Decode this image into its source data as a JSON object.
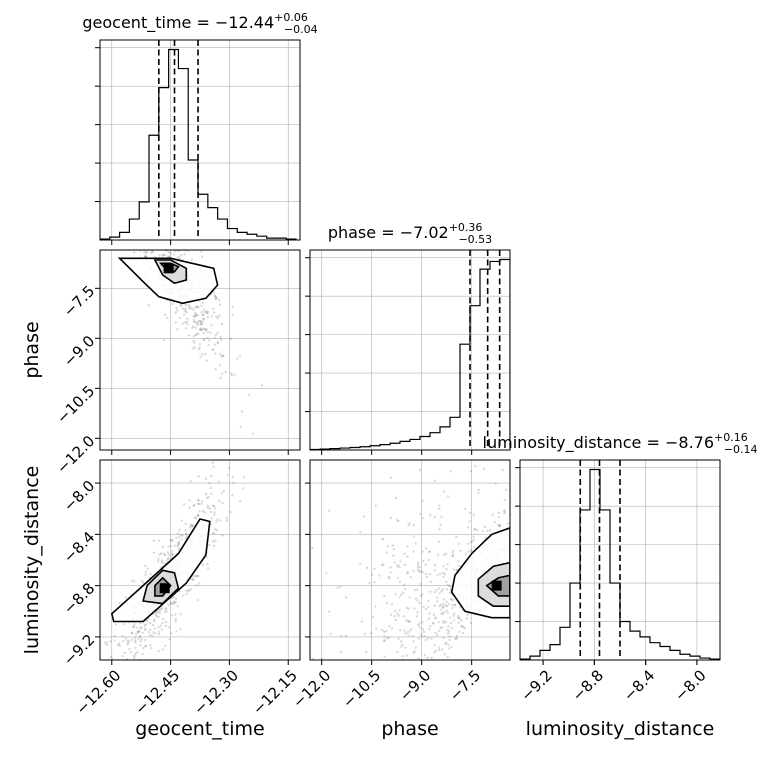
{
  "chart_data": {
    "type": "scatter",
    "kind": "corner",
    "parameters": [
      {
        "name": "geocent_time",
        "axis_label": "geocent_time",
        "range": [
          -12.63,
          -12.12
        ],
        "ticks": [
          -12.6,
          -12.45,
          -12.3,
          -12.15
        ],
        "tick_labels": [
          "−12.60",
          "−12.45",
          "−12.30",
          "−12.15"
        ],
        "title": {
          "prefix": "geocent_time = ",
          "median": "−12.44",
          "plus": "+0.06",
          "minus": "−0.04"
        },
        "quantiles": [
          -12.48,
          -12.44,
          -12.38
        ],
        "histogram": {
          "bin_edges": [
            -12.63,
            -12.605,
            -12.58,
            -12.555,
            -12.53,
            -12.505,
            -12.48,
            -12.455,
            -12.43,
            -12.405,
            -12.38,
            -12.355,
            -12.33,
            -12.305,
            -12.28,
            -12.255,
            -12.23,
            -12.205,
            -12.18,
            -12.155,
            -12.13
          ],
          "counts": [
            0.5,
            1.5,
            4,
            11,
            20,
            55,
            80,
            100,
            90,
            42,
            24,
            17,
            11,
            6,
            4,
            3,
            2,
            1,
            1,
            0.5
          ]
        }
      },
      {
        "name": "phase",
        "axis_label": "phase",
        "range": [
          -12.35,
          -6.35
        ],
        "ticks": [
          -12.0,
          -10.5,
          -9.0,
          -7.5
        ],
        "tick_labels": [
          "−12.0",
          "−10.5",
          "−9.0",
          "−7.5"
        ],
        "title": {
          "prefix": "phase = ",
          "median": "−7.02",
          "plus": "+0.36",
          "minus": "−0.53"
        },
        "quantiles": [
          -7.55,
          -7.02,
          -6.66
        ],
        "histogram": {
          "bin_edges": [
            -12.35,
            -12.05,
            -11.75,
            -11.45,
            -11.15,
            -10.85,
            -10.55,
            -10.25,
            -9.95,
            -9.65,
            -9.35,
            -9.05,
            -8.75,
            -8.45,
            -8.15,
            -7.85,
            -7.55,
            -7.25,
            -6.95,
            -6.65,
            -6.35
          ],
          "counts": [
            0.3,
            0.5,
            0.7,
            1,
            1.3,
            1.7,
            2.2,
            2.8,
            3.5,
            4.5,
            5.5,
            7,
            9,
            12,
            17,
            55,
            75,
            94,
            98,
            99
          ]
        }
      },
      {
        "name": "luminosity_distance",
        "axis_label": "luminosity_distance",
        "range": [
          -9.38,
          -7.82
        ],
        "ticks": [
          -9.2,
          -8.8,
          -8.4,
          -8.0
        ],
        "tick_labels": [
          "−9.2",
          "−8.8",
          "−8.4",
          "−8.0"
        ],
        "title": {
          "prefix": "luminosity_distance = ",
          "median": "−8.76",
          "plus": "+0.16",
          "minus": "−0.14"
        },
        "quantiles": [
          -8.91,
          -8.76,
          -8.6
        ],
        "histogram": {
          "bin_edges": [
            -9.38,
            -9.302,
            -9.224,
            -9.146,
            -9.068,
            -8.99,
            -8.912,
            -8.834,
            -8.756,
            -8.678,
            -8.6,
            -8.522,
            -8.444,
            -8.366,
            -8.288,
            -8.21,
            -8.132,
            -8.054,
            -7.976,
            -7.898,
            -7.82
          ],
          "counts": [
            0.5,
            2,
            5,
            8,
            17,
            40,
            78,
            99,
            78,
            40,
            20,
            15,
            12,
            9,
            7,
            5,
            3,
            2,
            1,
            0.5
          ]
        }
      }
    ],
    "pairs": [
      {
        "x": "geocent_time",
        "y": "phase",
        "peak": [
          -12.455,
          -6.9
        ],
        "contour_levels": [
          [
            [
              -12.58,
              -6.6
            ],
            [
              -12.52,
              -7.3
            ],
            [
              -12.48,
              -7.75
            ],
            [
              -12.42,
              -7.95
            ],
            [
              -12.36,
              -7.8
            ],
            [
              -12.33,
              -7.4
            ],
            [
              -12.34,
              -6.9
            ],
            [
              -12.45,
              -6.6
            ]
          ],
          [
            [
              -12.49,
              -6.65
            ],
            [
              -12.47,
              -7.1
            ],
            [
              -12.44,
              -7.35
            ],
            [
              -12.41,
              -7.25
            ],
            [
              -12.41,
              -6.9
            ],
            [
              -12.45,
              -6.65
            ]
          ],
          [
            [
              -12.475,
              -6.75
            ],
            [
              -12.46,
              -6.95
            ],
            [
              -12.44,
              -7.0
            ],
            [
              -12.43,
              -6.85
            ],
            [
              -12.45,
              -6.75
            ]
          ]
        ]
      },
      {
        "x": "geocent_time",
        "y": "luminosity_distance",
        "peak": [
          -12.465,
          -8.82
        ],
        "contour_levels": [
          [
            [
              -12.595,
              -9.08
            ],
            [
              -12.52,
              -9.08
            ],
            [
              -12.41,
              -8.78
            ],
            [
              -12.36,
              -8.56
            ],
            [
              -12.35,
              -8.3
            ],
            [
              -12.375,
              -8.28
            ],
            [
              -12.43,
              -8.55
            ],
            [
              -12.52,
              -8.8
            ],
            [
              -12.6,
              -9.02
            ]
          ],
          [
            [
              -12.52,
              -8.92
            ],
            [
              -12.47,
              -8.94
            ],
            [
              -12.43,
              -8.82
            ],
            [
              -12.44,
              -8.7
            ],
            [
              -12.47,
              -8.68
            ],
            [
              -12.51,
              -8.8
            ]
          ],
          [
            [
              -12.49,
              -8.88
            ],
            [
              -12.47,
              -8.88
            ],
            [
              -12.45,
              -8.8
            ],
            [
              -12.47,
              -8.74
            ],
            [
              -12.49,
              -8.8
            ]
          ]
        ]
      },
      {
        "x": "phase",
        "y": "luminosity_distance",
        "peak": [
          -6.75,
          -8.8
        ],
        "contour_levels": [
          [
            [
              -6.35,
              -8.35
            ],
            [
              -6.9,
              -8.4
            ],
            [
              -7.5,
              -8.55
            ],
            [
              -8.0,
              -8.72
            ],
            [
              -8.1,
              -8.85
            ],
            [
              -7.7,
              -9.0
            ],
            [
              -6.9,
              -9.05
            ],
            [
              -6.35,
              -9.05
            ]
          ],
          [
            [
              -6.35,
              -8.62
            ],
            [
              -6.85,
              -8.65
            ],
            [
              -7.3,
              -8.75
            ],
            [
              -7.3,
              -8.88
            ],
            [
              -6.85,
              -8.96
            ],
            [
              -6.35,
              -8.96
            ]
          ],
          [
            [
              -6.35,
              -8.72
            ],
            [
              -6.7,
              -8.74
            ],
            [
              -7.05,
              -8.8
            ],
            [
              -6.7,
              -8.88
            ],
            [
              -6.35,
              -8.88
            ]
          ]
        ]
      }
    ]
  }
}
